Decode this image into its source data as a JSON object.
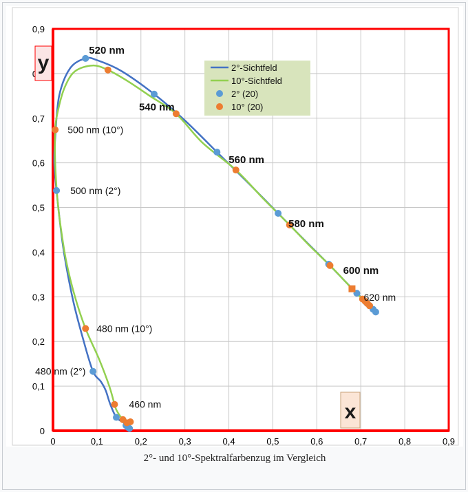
{
  "caption": "2°- und 10°-Spektralfarbenzug im Vergleich",
  "colors": {
    "curve_2deg": "#4472c4",
    "curve_10deg": "#92d050",
    "marker_2deg": "#5b9bd5",
    "marker_10deg": "#ed7d31",
    "frame_red": "#ff0000",
    "legend_bg": "#d8e4bc",
    "x_label_bg": "#fbe5d6"
  },
  "chart_data": {
    "type": "scatter",
    "xlim": [
      0,
      0.9
    ],
    "ylim": [
      0,
      0.9
    ],
    "xticks": [
      "0",
      "0,1",
      "0,2",
      "0,3",
      "0,4",
      "0,5",
      "0,6",
      "0,7",
      "0,8",
      "0,9"
    ],
    "yticks": [
      "0",
      "0,1",
      "0,2",
      "0,3",
      "0,4",
      "0,5",
      "0,6",
      "0,7",
      "0,8",
      "0,9"
    ],
    "xlabel": "x",
    "ylabel": "y",
    "grid": true,
    "legend_position": "top-right",
    "series": [
      {
        "name": "2°-Sichtfeld",
        "kind": "line",
        "points": [
          [
            0.174,
            0.005
          ],
          [
            0.17,
            0.008
          ],
          [
            0.166,
            0.012
          ],
          [
            0.161,
            0.018
          ],
          [
            0.144,
            0.03
          ],
          [
            0.13,
            0.06
          ],
          [
            0.12,
            0.09
          ],
          [
            0.109,
            0.11
          ],
          [
            0.091,
            0.133
          ],
          [
            0.07,
            0.2
          ],
          [
            0.045,
            0.295
          ],
          [
            0.023,
            0.412
          ],
          [
            0.008,
            0.538
          ],
          [
            0.003,
            0.6
          ],
          [
            0.005,
            0.655
          ],
          [
            0.014,
            0.75
          ],
          [
            0.039,
            0.812
          ],
          [
            0.074,
            0.834
          ],
          [
            0.1,
            0.83
          ],
          [
            0.155,
            0.806
          ],
          [
            0.23,
            0.754
          ],
          [
            0.3,
            0.695
          ],
          [
            0.373,
            0.624
          ],
          [
            0.444,
            0.555
          ],
          [
            0.512,
            0.487
          ],
          [
            0.575,
            0.424
          ],
          [
            0.627,
            0.373
          ],
          [
            0.665,
            0.334
          ],
          [
            0.691,
            0.308
          ],
          [
            0.713,
            0.287
          ],
          [
            0.734,
            0.266
          ]
        ]
      },
      {
        "name": "10°-Sichtfeld",
        "kind": "line",
        "points": [
          [
            0.176,
            0.02
          ],
          [
            0.168,
            0.02
          ],
          [
            0.159,
            0.025
          ],
          [
            0.145,
            0.045
          ],
          [
            0.14,
            0.059
          ],
          [
            0.128,
            0.1
          ],
          [
            0.105,
            0.16
          ],
          [
            0.074,
            0.229
          ],
          [
            0.05,
            0.3
          ],
          [
            0.03,
            0.38
          ],
          [
            0.017,
            0.46
          ],
          [
            0.01,
            0.52
          ],
          [
            0.005,
            0.6
          ],
          [
            0.005,
            0.674
          ],
          [
            0.012,
            0.72
          ],
          [
            0.027,
            0.77
          ],
          [
            0.05,
            0.805
          ],
          [
            0.09,
            0.818
          ],
          [
            0.125,
            0.808
          ],
          [
            0.17,
            0.783
          ],
          [
            0.22,
            0.75
          ],
          [
            0.28,
            0.71
          ],
          [
            0.34,
            0.645
          ],
          [
            0.416,
            0.584
          ],
          [
            0.48,
            0.518
          ],
          [
            0.538,
            0.461
          ],
          [
            0.585,
            0.413
          ],
          [
            0.63,
            0.37
          ],
          [
            0.666,
            0.333
          ],
          [
            0.68,
            0.318
          ],
          [
            0.704,
            0.295
          ],
          [
            0.72,
            0.28
          ]
        ]
      },
      {
        "name": "2° (20)",
        "kind": "markers",
        "points": [
          [
            0.074,
            0.834
          ],
          [
            0.23,
            0.754
          ],
          [
            0.373,
            0.624
          ],
          [
            0.512,
            0.487
          ],
          [
            0.627,
            0.373
          ],
          [
            0.691,
            0.308
          ],
          [
            0.008,
            0.538
          ],
          [
            0.091,
            0.133
          ],
          [
            0.144,
            0.03
          ],
          [
            0.166,
            0.012
          ],
          [
            0.17,
            0.008
          ],
          [
            0.174,
            0.005
          ],
          [
            0.713,
            0.287
          ],
          [
            0.72,
            0.28
          ],
          [
            0.728,
            0.272
          ],
          [
            0.734,
            0.266
          ]
        ]
      },
      {
        "name": "10° (20)",
        "kind": "markers",
        "points": [
          [
            0.125,
            0.808
          ],
          [
            0.28,
            0.71
          ],
          [
            0.416,
            0.584
          ],
          [
            0.538,
            0.461
          ],
          [
            0.63,
            0.37
          ],
          [
            0.005,
            0.674
          ],
          [
            0.074,
            0.229
          ],
          [
            0.14,
            0.059
          ],
          [
            0.159,
            0.025
          ],
          [
            0.168,
            0.018
          ],
          [
            0.176,
            0.02
          ],
          [
            0.704,
            0.295
          ],
          [
            0.71,
            0.29
          ],
          [
            0.715,
            0.285
          ],
          [
            0.72,
            0.28
          ]
        ]
      }
    ],
    "highlight_point": [
      0.68,
      0.318
    ],
    "annotations": [
      {
        "text": "520 nm",
        "x": 0.074,
        "y": 0.834,
        "bold": true
      },
      {
        "text": "540 nm",
        "x": 0.23,
        "y": 0.754,
        "bold": true
      },
      {
        "text": "560 nm",
        "x": 0.373,
        "y": 0.624,
        "bold": true
      },
      {
        "text": "580 nm",
        "x": 0.512,
        "y": 0.487,
        "bold": true
      },
      {
        "text": "600 nm",
        "x": 0.627,
        "y": 0.373,
        "bold": true
      },
      {
        "text": "620 nm",
        "x": 0.691,
        "y": 0.308,
        "bold": false
      },
      {
        "text": "500 nm (10°)",
        "x": 0.005,
        "y": 0.674,
        "bold": false
      },
      {
        "text": "500 nm (2°)",
        "x": 0.008,
        "y": 0.538,
        "bold": false
      },
      {
        "text": "480 nm (10°)",
        "x": 0.074,
        "y": 0.229,
        "bold": false
      },
      {
        "text": "480 nm  (2°)",
        "x": 0.091,
        "y": 0.133,
        "bold": false
      },
      {
        "text": "460 nm",
        "x": 0.14,
        "y": 0.059,
        "bold": false
      }
    ]
  }
}
